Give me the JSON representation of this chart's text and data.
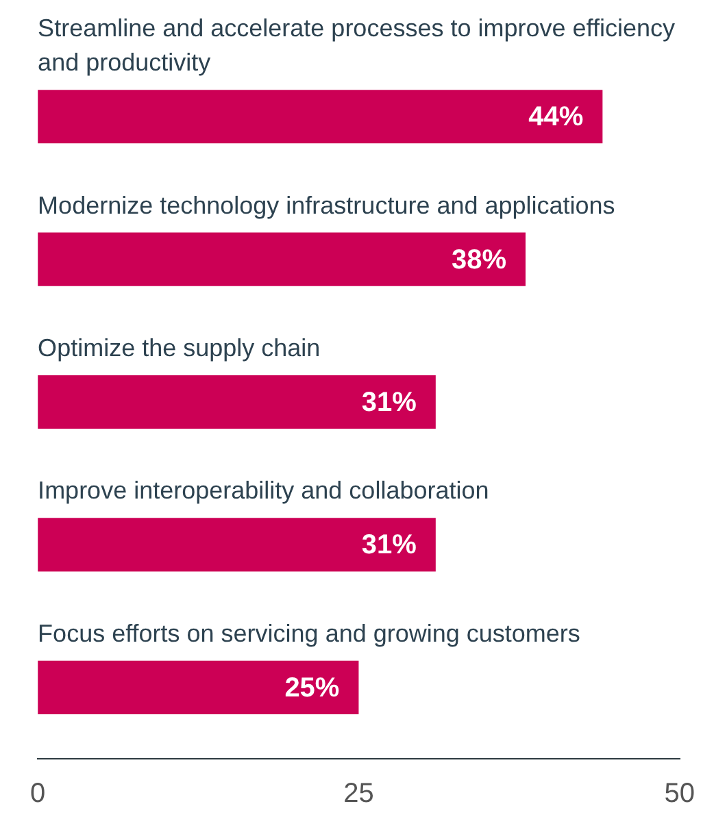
{
  "chart_data": {
    "type": "bar",
    "orientation": "horizontal",
    "categories": [
      "Streamline and accelerate processes to improve efficiency and productivity",
      "Modernize technology infrastructure and applications",
      "Optimize the supply chain",
      "Improve interoperability and collaboration",
      "Focus efforts on servicing and growing customers"
    ],
    "values": [
      44,
      38,
      31,
      31,
      25
    ],
    "value_labels": [
      "44%",
      "38%",
      "31%",
      "31%",
      "25%"
    ],
    "color": "#cc0055",
    "xlim": [
      0,
      50
    ],
    "xticks": [
      0,
      25,
      50
    ],
    "grid": false,
    "legend": false
  }
}
